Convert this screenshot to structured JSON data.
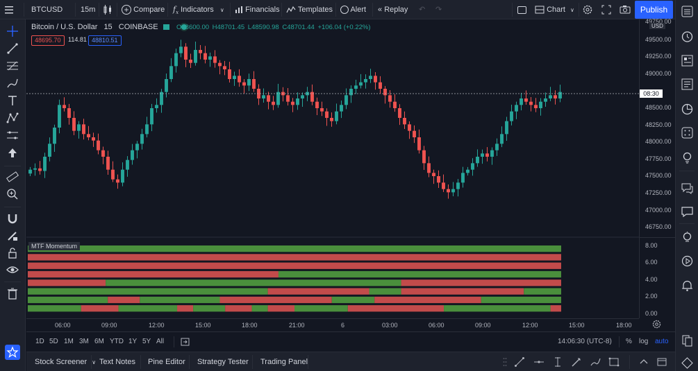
{
  "topbar": {
    "symbol": "BTCUSD",
    "interval": "15m",
    "compare": "Compare",
    "indicators": "Indicators",
    "financials": "Financials",
    "templates": "Templates",
    "alert": "Alert",
    "replay": "Replay",
    "chart_label": "Chart",
    "publish": "Publish"
  },
  "legend": {
    "title": "Bitcoin / U.S. Dollar",
    "interval": "15",
    "exchange": "COINBASE",
    "open": "O48600.00",
    "high": "H48701.45",
    "low": "L48590.98",
    "close": "C48701.44",
    "change": "+106.04 (+0.22%)",
    "bid": "48695.70",
    "spread": "114.81",
    "ask": "48810.51"
  },
  "price_axis": {
    "currency": "USD",
    "ticks": [
      "49750.00",
      "49500.00",
      "49250.00",
      "49000.00",
      "48750.00",
      "48500.00",
      "48250.00",
      "48000.00",
      "47750.00",
      "47500.00",
      "47250.00",
      "47000.00",
      "46750.00"
    ],
    "countdown": "08:30"
  },
  "indicator": {
    "name": "MTF Momentum",
    "ticks": [
      "8.00",
      "6.00",
      "4.00",
      "2.00",
      "0.00"
    ],
    "colors": {
      "up": "#4a8f3c",
      "down": "#c24b4b"
    }
  },
  "time_axis": {
    "ticks": [
      "06:00",
      "09:00",
      "12:00",
      "15:00",
      "18:00",
      "21:00",
      "6",
      "03:00",
      "06:00",
      "09:00",
      "12:00",
      "15:00",
      "18:00"
    ]
  },
  "range_bar": {
    "ranges": [
      "1D",
      "5D",
      "1M",
      "3M",
      "6M",
      "YTD",
      "1Y",
      "5Y",
      "All"
    ],
    "clock": "14:06:30 (UTC-8)",
    "percent": "%",
    "log": "log",
    "auto": "auto"
  },
  "bottom_bar": {
    "tabs": [
      "Stock Screener",
      "Text Notes",
      "Pine Editor",
      "Strategy Tester",
      "Trading Panel"
    ]
  },
  "colors": {
    "up": "#26a69a",
    "down": "#ef5350",
    "accent": "#2962ff",
    "background": "#131722",
    "panel": "#1e222d"
  },
  "chart_data": {
    "type": "candlestick",
    "ylim": [
      46500,
      49800
    ],
    "price_series": [
      47500,
      47520,
      47480,
      47700,
      47900,
      48150,
      48500,
      48450,
      48300,
      48100,
      48200,
      48050,
      48000,
      47950,
      47800,
      47700,
      47500,
      47350,
      47300,
      47500,
      47650,
      47800,
      47900,
      48050,
      48200,
      48450,
      48500,
      48700,
      48900,
      49100,
      49300,
      49400,
      49200,
      49150,
      49350,
      49300,
      49200,
      49250,
      49150,
      49100,
      49050,
      48900,
      48950,
      48850,
      48800,
      48900,
      48750,
      48600,
      48650,
      48550,
      48500,
      48700,
      48650,
      48550,
      48500,
      48600,
      48650,
      48700,
      48550,
      48450,
      48400,
      48300,
      48250,
      48400,
      48500,
      48650,
      48750,
      48800,
      48850,
      48900,
      48950,
      48850,
      48750,
      48650,
      48550,
      48450,
      48300,
      48200,
      48100,
      48000,
      47800,
      47600,
      47450,
      47400,
      47300,
      47200,
      47150,
      47200,
      47300,
      47450,
      47500,
      47600,
      47700,
      47750,
      47700,
      47800,
      47900,
      48050,
      48250,
      48400,
      48500,
      48600,
      48550,
      48500,
      48450,
      48550,
      48600,
      48650,
      48600,
      48700
    ]
  }
}
